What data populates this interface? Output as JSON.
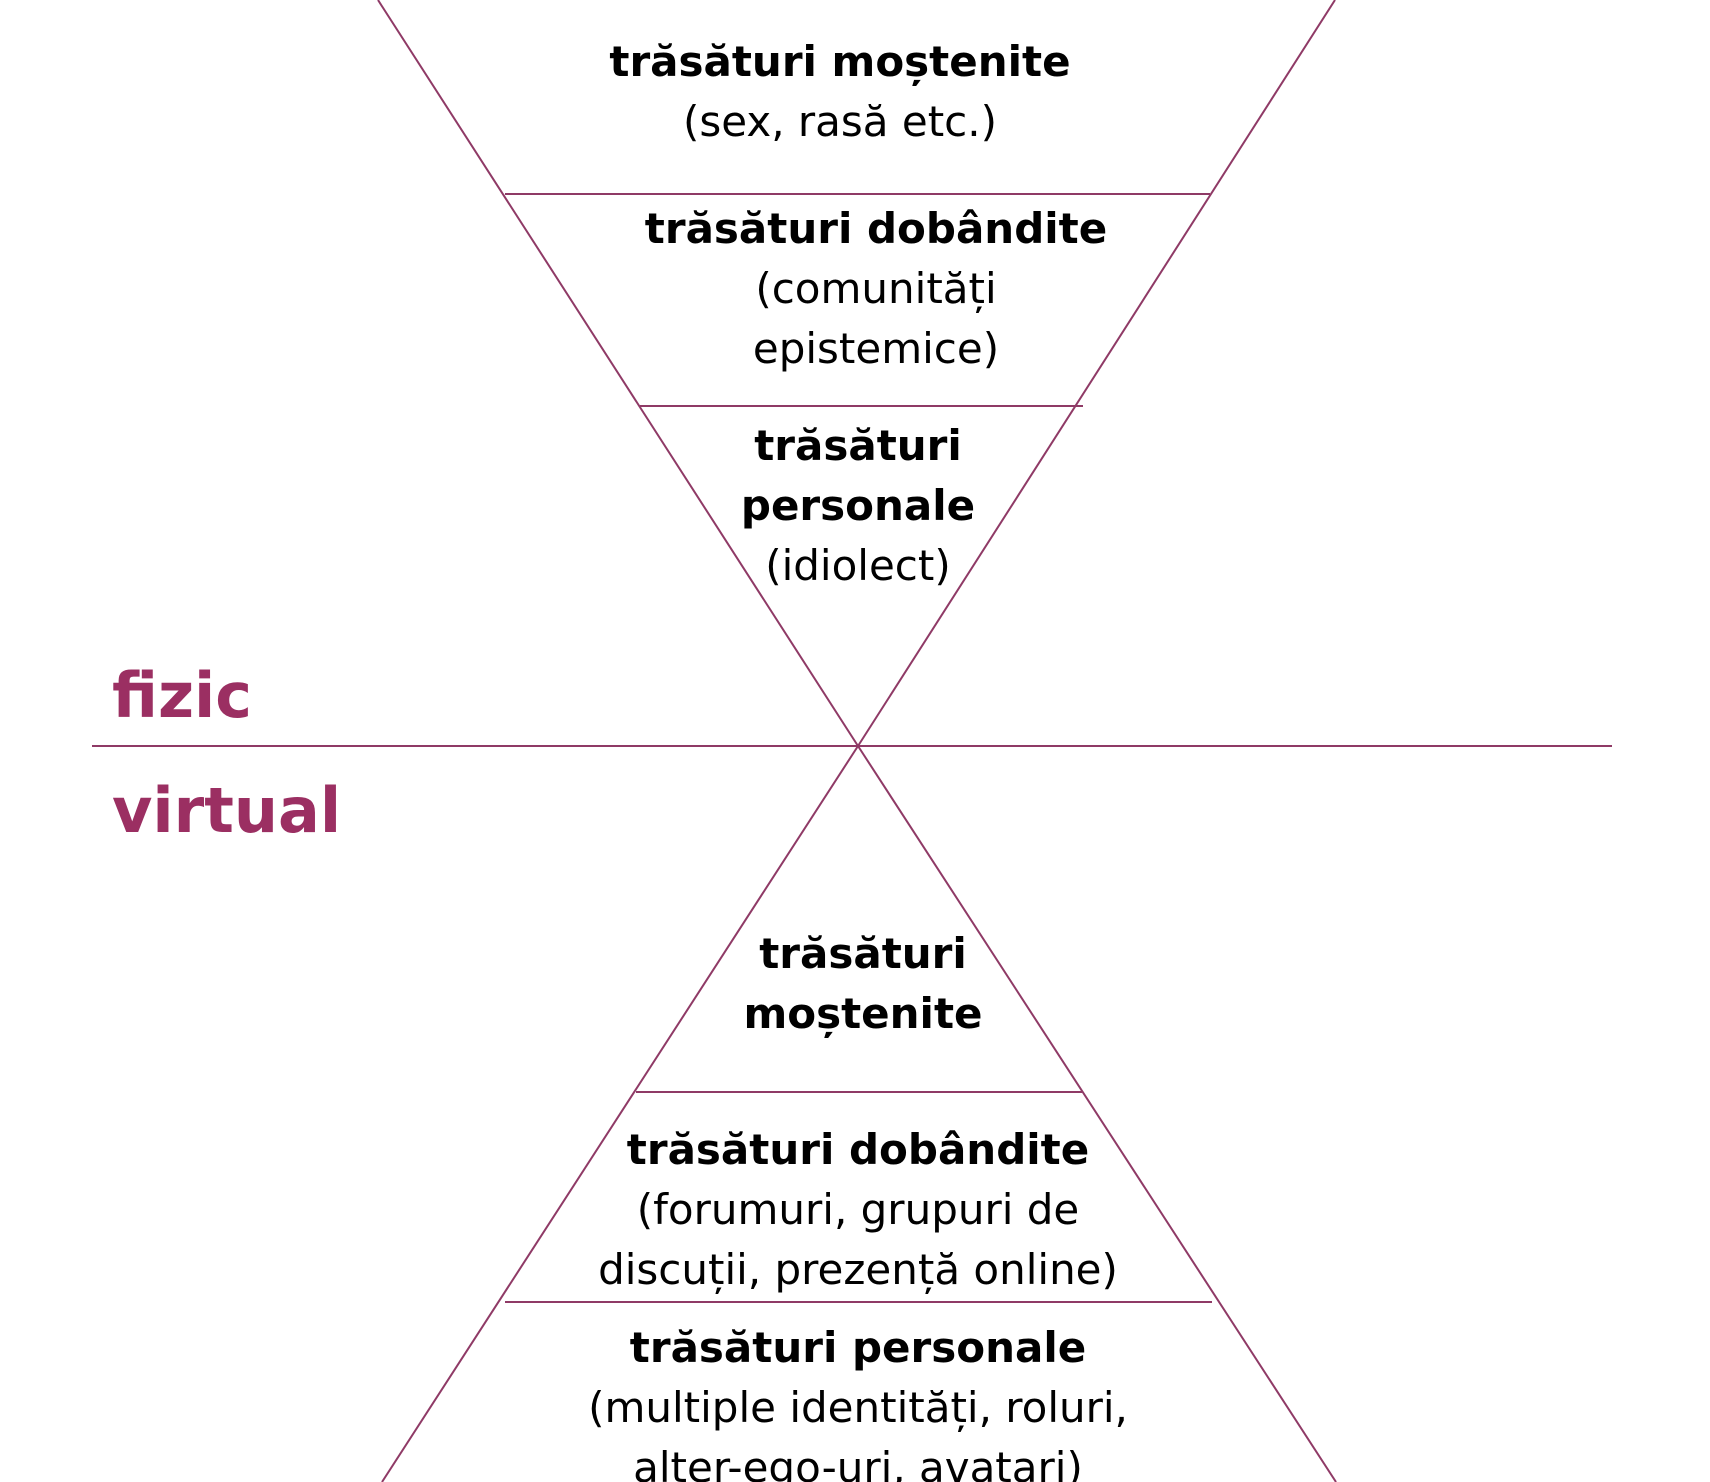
{
  "colors": {
    "line": "#8f3a66",
    "label": "#9b2f62",
    "text": "#000000",
    "background": "#ffffff"
  },
  "labels": {
    "physical": "fizic",
    "virtual": "virtual"
  },
  "top_triangle": {
    "inherited": {
      "title": "trăsături moștenite",
      "detail": "(sex, rasă etc.)"
    },
    "acquired": {
      "title": "trăsături dobândite",
      "detail": "(comunități epistemice)"
    },
    "personal": {
      "title": "trăsături personale",
      "detail": "(idiolect)"
    }
  },
  "bottom_triangle": {
    "inherited": {
      "title": "trăsături moștenite",
      "detail": ""
    },
    "acquired": {
      "title": "trăsături dobândite",
      "detail": "(forumuri, grupuri de discuții, prezență online)"
    },
    "personal": {
      "title": "trăsături personale",
      "detail": "(multiple identități, roluri, alter-ego-uri, avatari)"
    }
  }
}
